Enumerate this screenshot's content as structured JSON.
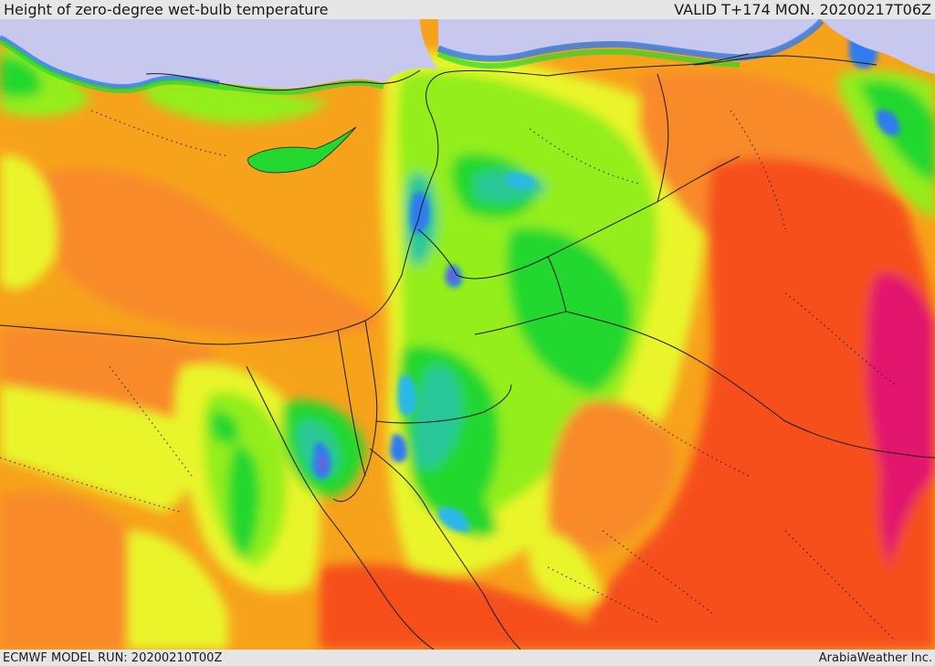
{
  "header": {
    "title": "Height of zero-degree wet-bulb temperature",
    "valid": "VALID T+174 MON. 20200217T06Z"
  },
  "footer": {
    "model_run": "ECMWF MODEL RUN: 20200210T00Z",
    "credit": "ArabiaWeather Inc."
  },
  "palette": {
    "sea": "#c8c8ee",
    "purple": "#6d5fd0",
    "blue": "#2f7cf0",
    "cyan": "#29b8e8",
    "teal": "#2bc79a",
    "green": "#23d82e",
    "lime": "#93ee1d",
    "yellow": "#e9f52a",
    "amber": "#f7a21b",
    "orange": "#f88a2a",
    "red": "#f64f1c",
    "magenta": "#e2186c",
    "border": "#1a1a1a"
  }
}
